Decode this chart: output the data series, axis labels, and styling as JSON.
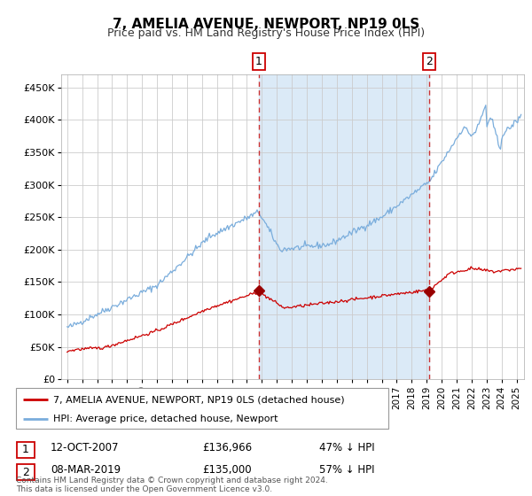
{
  "title": "7, AMELIA AVENUE, NEWPORT, NP19 0LS",
  "subtitle": "Price paid vs. HM Land Registry's House Price Index (HPI)",
  "legend_line1": "7, AMELIA AVENUE, NEWPORT, NP19 0LS (detached house)",
  "legend_line2": "HPI: Average price, detached house, Newport",
  "annotation1_date": "12-OCT-2007",
  "annotation1_price": "£136,966",
  "annotation1_hpi": "47% ↓ HPI",
  "annotation2_date": "08-MAR-2019",
  "annotation2_price": "£135,000",
  "annotation2_hpi": "57% ↓ HPI",
  "footnote": "Contains HM Land Registry data © Crown copyright and database right 2024.\nThis data is licensed under the Open Government Licence v3.0.",
  "hpi_color": "#7aaddc",
  "price_color": "#cc0000",
  "marker_color": "#990000",
  "dashed_line_color": "#cc3333",
  "shading_color": "#dbeaf7",
  "grid_color": "#cccccc",
  "ylim": [
    0,
    470000
  ],
  "yticks": [
    0,
    50000,
    100000,
    150000,
    200000,
    250000,
    300000,
    350000,
    400000,
    450000
  ],
  "sale1_x": 2007.79,
  "sale1_y": 136966,
  "sale2_x": 2019.18,
  "sale2_y": 135000,
  "xmin": 1994.6,
  "xmax": 2025.5
}
